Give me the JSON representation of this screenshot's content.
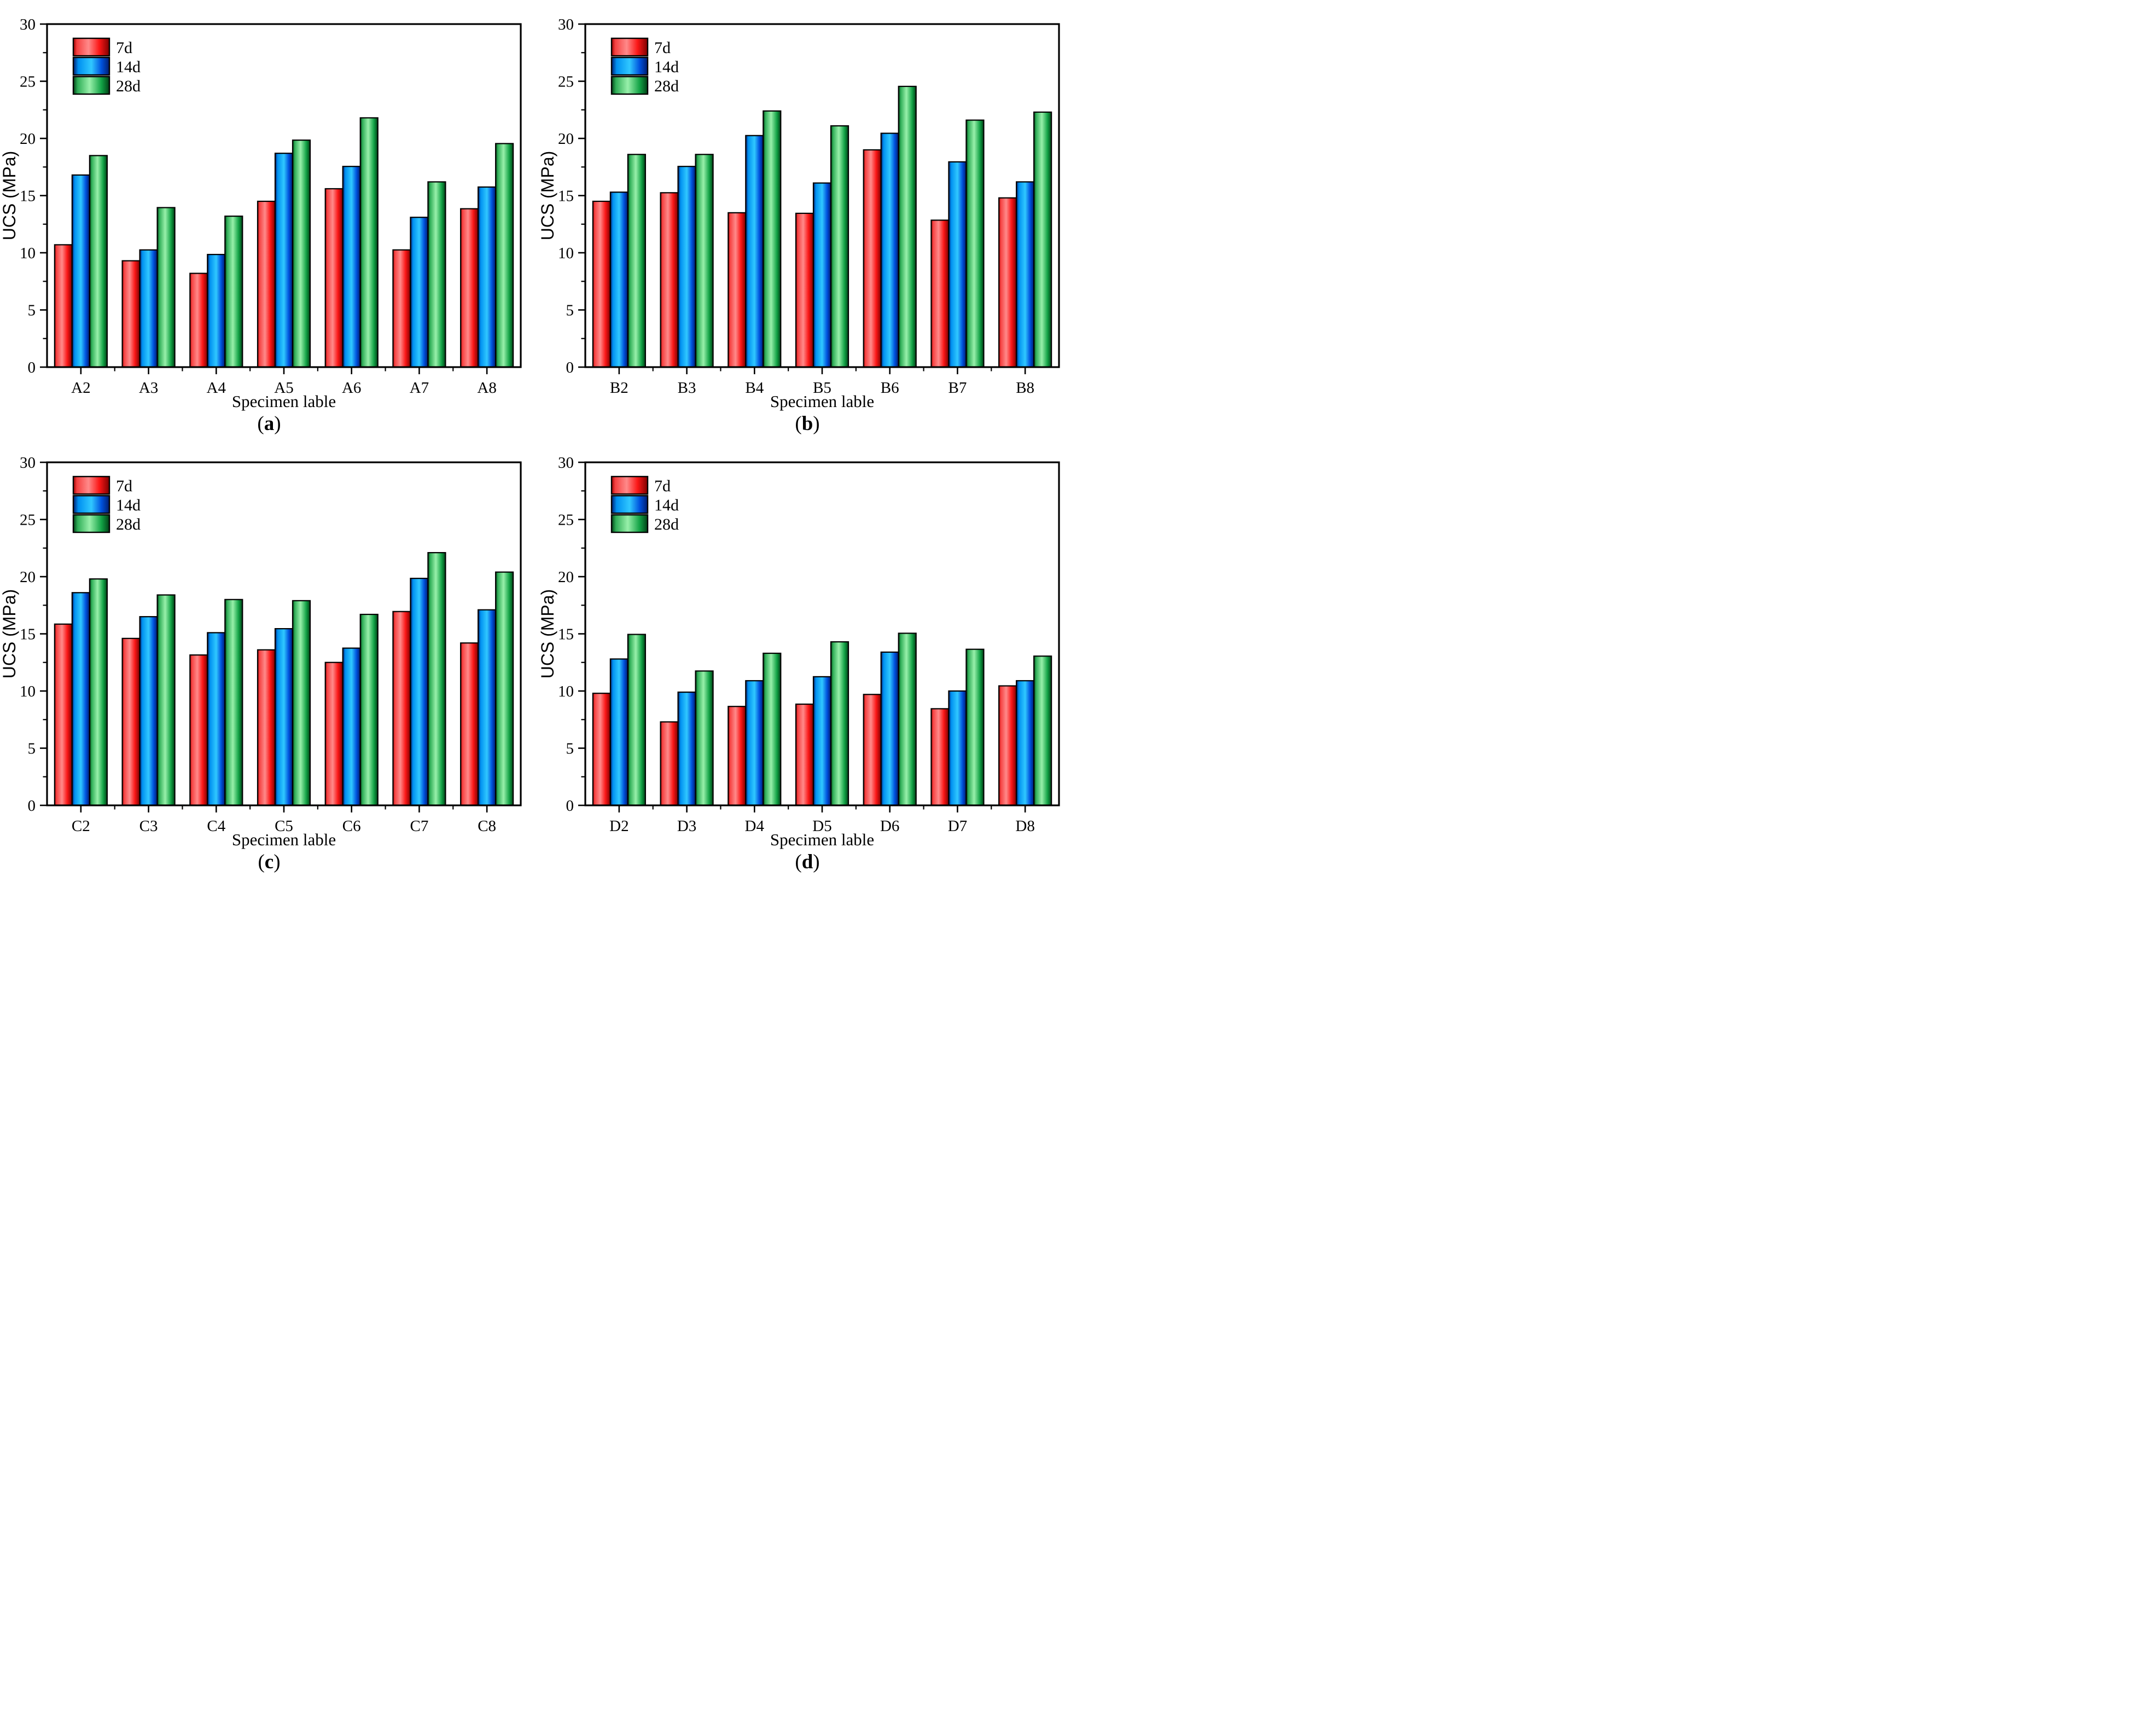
{
  "figure": {
    "background": "#ffffff",
    "panels": [
      {
        "caption_open": "(",
        "caption_letter": "a",
        "caption_close": ")"
      },
      {
        "caption_open": "(",
        "caption_letter": "b",
        "caption_close": ")"
      },
      {
        "caption_open": "(",
        "caption_letter": "c",
        "caption_close": ")"
      },
      {
        "caption_open": "(",
        "caption_letter": "d",
        "caption_close": ")"
      }
    ]
  },
  "colors": {
    "axis": "#000000",
    "bar_outline": "#000000",
    "series_base": {
      "7d": "#f53b3b",
      "14d": "#0090f0",
      "28d": "#2fae57"
    },
    "gradients": {
      "7d": [
        [
          0,
          "#9c0000"
        ],
        [
          0.1,
          "#f54040"
        ],
        [
          0.42,
          "#ff8a8a"
        ],
        [
          0.72,
          "#fb1717"
        ],
        [
          1,
          "#7c0000"
        ]
      ],
      "14d": [
        [
          0,
          "#001c6e"
        ],
        [
          0.14,
          "#0090f0"
        ],
        [
          0.5,
          "#30c8ff"
        ],
        [
          0.78,
          "#0052de"
        ],
        [
          1,
          "#001c6e"
        ]
      ],
      "28d": [
        [
          0,
          "#004016"
        ],
        [
          0.12,
          "#2fae57"
        ],
        [
          0.45,
          "#98f0aa"
        ],
        [
          0.78,
          "#12a245"
        ],
        [
          1,
          "#004016"
        ]
      ]
    }
  },
  "chart_data": [
    {
      "type": "bar",
      "panel": "a",
      "title": "",
      "xlabel": "Specimen lable",
      "ylabel": "UCS (MPa)",
      "ylim": [
        0,
        30
      ],
      "yticks": [
        0,
        5,
        10,
        15,
        20,
        25,
        30
      ],
      "ytick_minor_step": 2.5,
      "grid": false,
      "legend_position": "top-left",
      "categories": [
        "A2",
        "A3",
        "A4",
        "A5",
        "A6",
        "A7",
        "A8"
      ],
      "series": [
        {
          "name": "7d",
          "values": [
            10.7,
            9.3,
            8.2,
            14.5,
            15.6,
            10.25,
            13.85
          ]
        },
        {
          "name": "14d",
          "values": [
            16.8,
            10.25,
            9.85,
            18.7,
            17.55,
            13.1,
            15.75
          ]
        },
        {
          "name": "28d",
          "values": [
            18.5,
            13.95,
            13.2,
            19.85,
            21.8,
            16.2,
            19.55
          ]
        }
      ]
    },
    {
      "type": "bar",
      "panel": "b",
      "title": "",
      "xlabel": "Specimen lable",
      "ylabel": "UCS (MPa)",
      "ylim": [
        0,
        30
      ],
      "yticks": [
        0,
        5,
        10,
        15,
        20,
        25,
        30
      ],
      "ytick_minor_step": 2.5,
      "grid": false,
      "legend_position": "top-left",
      "categories": [
        "B2",
        "B3",
        "B4",
        "B5",
        "B6",
        "B7",
        "B8"
      ],
      "series": [
        {
          "name": "7d",
          "values": [
            14.5,
            15.25,
            13.5,
            13.45,
            19.0,
            12.85,
            14.8
          ]
        },
        {
          "name": "14d",
          "values": [
            15.3,
            17.55,
            20.25,
            16.1,
            20.45,
            17.95,
            16.2
          ]
        },
        {
          "name": "28d",
          "values": [
            18.6,
            18.6,
            22.4,
            21.1,
            24.55,
            21.6,
            22.3
          ]
        }
      ]
    },
    {
      "type": "bar",
      "panel": "c",
      "title": "",
      "xlabel": "Specimen lable",
      "ylabel": "UCS (MPa)",
      "ylim": [
        0,
        30
      ],
      "yticks": [
        0,
        5,
        10,
        15,
        20,
        25,
        30
      ],
      "ytick_minor_step": 2.5,
      "grid": false,
      "legend_position": "top-left",
      "categories": [
        "C2",
        "C3",
        "C4",
        "C5",
        "C6",
        "C7",
        "C8"
      ],
      "series": [
        {
          "name": "7d",
          "values": [
            15.85,
            14.6,
            13.15,
            13.6,
            12.5,
            16.95,
            14.2
          ]
        },
        {
          "name": "14d",
          "values": [
            18.6,
            16.5,
            15.1,
            15.45,
            13.75,
            19.85,
            17.1
          ]
        },
        {
          "name": "28d",
          "values": [
            19.8,
            18.4,
            18.0,
            17.9,
            16.7,
            22.1,
            20.4
          ]
        }
      ]
    },
    {
      "type": "bar",
      "panel": "d",
      "title": "",
      "xlabel": "Specimen lable",
      "ylabel": "UCS (MPa)",
      "ylim": [
        0,
        30
      ],
      "yticks": [
        0,
        5,
        10,
        15,
        20,
        25,
        30
      ],
      "ytick_minor_step": 2.5,
      "grid": false,
      "legend_position": "top-left",
      "categories": [
        "D2",
        "D3",
        "D4",
        "D5",
        "D6",
        "D7",
        "D8"
      ],
      "series": [
        {
          "name": "7d",
          "values": [
            9.8,
            7.3,
            8.65,
            8.85,
            9.7,
            8.45,
            10.45
          ]
        },
        {
          "name": "14d",
          "values": [
            12.8,
            9.9,
            10.9,
            11.25,
            13.4,
            10.0,
            10.9
          ]
        },
        {
          "name": "28d",
          "values": [
            14.95,
            11.75,
            13.3,
            14.3,
            15.05,
            13.65,
            13.05
          ]
        }
      ]
    }
  ]
}
